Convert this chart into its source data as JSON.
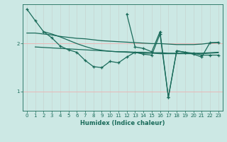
{
  "title": "",
  "xlabel": "Humidex (Indice chaleur)",
  "bg_color": "#cce8e4",
  "line_color": "#1a6b5a",
  "grid_color_v": "#c8d8d4",
  "grid_color_h": "#e8b8b8",
  "xlim": [
    -0.5,
    23.5
  ],
  "ylim": [
    0.6,
    2.82
  ],
  "yticks": [
    1,
    2
  ],
  "xticks": [
    0,
    1,
    2,
    3,
    4,
    5,
    6,
    7,
    8,
    9,
    10,
    11,
    12,
    13,
    14,
    15,
    16,
    17,
    18,
    19,
    20,
    21,
    22,
    23
  ],
  "lines": [
    {
      "x": [
        0,
        1,
        2,
        3,
        4,
        5,
        6,
        7,
        8,
        9,
        10,
        11,
        12,
        13,
        14,
        15,
        16,
        17,
        18,
        19,
        20,
        21,
        22,
        23
      ],
      "y": [
        2.72,
        2.48,
        2.25,
        2.12,
        1.95,
        1.87,
        1.82,
        1.65,
        1.52,
        1.5,
        1.63,
        1.6,
        1.72,
        1.82,
        1.78,
        1.76,
        2.2,
        0.88,
        1.85,
        1.82,
        1.78,
        1.72,
        2.02,
        2.02
      ],
      "has_markers": true
    },
    {
      "x": [
        0,
        1,
        2,
        3,
        4,
        5,
        6,
        7,
        8,
        9,
        10,
        11,
        12,
        13,
        14,
        15,
        16,
        17,
        18,
        19,
        20,
        21,
        22,
        23
      ],
      "y": [
        2.22,
        2.22,
        2.2,
        2.18,
        2.15,
        2.13,
        2.11,
        2.1,
        2.08,
        2.06,
        2.05,
        2.04,
        2.03,
        2.02,
        2.01,
        2.0,
        2.0,
        1.99,
        1.98,
        1.98,
        1.98,
        1.99,
        2.01,
        2.03
      ],
      "has_markers": false
    },
    {
      "x": [
        1,
        2,
        3,
        4,
        5,
        6,
        7,
        8,
        9,
        10,
        11,
        12,
        13,
        14,
        15,
        16,
        17,
        18,
        19,
        20,
        21,
        22,
        23
      ],
      "y": [
        1.93,
        1.92,
        1.91,
        1.9,
        1.89,
        1.88,
        1.87,
        1.86,
        1.85,
        1.84,
        1.83,
        1.83,
        1.82,
        1.82,
        1.81,
        1.81,
        1.8,
        1.8,
        1.8,
        1.8,
        1.8,
        1.81,
        1.82
      ],
      "has_markers": false
    },
    {
      "x": [
        2,
        3,
        4,
        5,
        6,
        7,
        8,
        9,
        10,
        11,
        12,
        13,
        14,
        15,
        16,
        17,
        18,
        19,
        20,
        21,
        22,
        23
      ],
      "y": [
        2.25,
        2.2,
        2.14,
        2.07,
        2.0,
        1.94,
        1.89,
        1.86,
        1.84,
        1.83,
        1.82,
        1.81,
        1.8,
        1.8,
        1.79,
        1.79,
        1.79,
        1.79,
        1.79,
        1.79,
        1.8,
        1.81
      ],
      "has_markers": false
    },
    {
      "x": [
        12,
        13,
        14,
        15,
        16,
        17,
        18,
        19,
        20,
        21,
        22,
        23
      ],
      "y": [
        2.62,
        1.93,
        1.9,
        1.83,
        2.25,
        0.88,
        1.85,
        1.82,
        1.8,
        1.76,
        1.76,
        1.76
      ],
      "has_markers": true
    }
  ]
}
